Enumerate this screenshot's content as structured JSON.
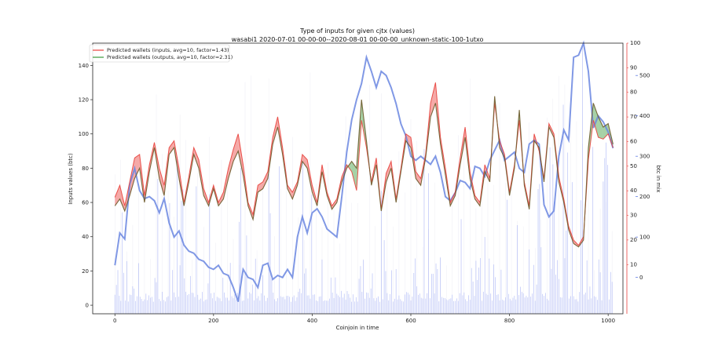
{
  "chart_data": {
    "type": "line",
    "title": "Type of inputs for given cjtx (values)",
    "subtitle": "wasabi1 2020-07-01 00-00-00--2020-08-01 00-00-00_unknown-static-100-1utxo",
    "xlabel": "Coinjoin in time",
    "ylabel": "Inputs values (btc)",
    "ylabel_right": "btc in mix",
    "xlim": [
      -45,
      1030
    ],
    "ylim": [
      -5,
      153
    ],
    "ylim_right_red": [
      -10,
      100
    ],
    "ylim_right_blue": [
      -90,
      580
    ],
    "x_ticks": [
      0,
      200,
      400,
      600,
      800,
      1000
    ],
    "y_ticks": [
      0,
      20,
      40,
      60,
      80,
      100,
      120,
      140
    ],
    "y_ticks_right_red": [
      10,
      20,
      30,
      40,
      50,
      60,
      70,
      80,
      90,
      100
    ],
    "y_ticks_right_blue": [
      0,
      100,
      200,
      300,
      400,
      500
    ],
    "legend_position": "top-left",
    "colors": {
      "inputs": "#e8413c",
      "outputs": "#3a9a3a",
      "mix": "#6a86e0",
      "red_axis": "#e8413c",
      "blue_axis": "#4a6ae0"
    },
    "series": [
      {
        "name": "Predicted wallets (inputs, avg=10, factor=1.43)",
        "axis": "left",
        "x": [
          0,
          10,
          20,
          30,
          40,
          50,
          60,
          70,
          80,
          90,
          100,
          110,
          120,
          130,
          140,
          150,
          160,
          170,
          180,
          190,
          200,
          210,
          220,
          230,
          240,
          250,
          260,
          270,
          280,
          290,
          300,
          310,
          320,
          330,
          340,
          350,
          360,
          370,
          380,
          390,
          400,
          410,
          420,
          430,
          440,
          450,
          460,
          470,
          480,
          490,
          500,
          510,
          520,
          530,
          540,
          550,
          560,
          570,
          580,
          590,
          600,
          610,
          620,
          630,
          640,
          650,
          660,
          670,
          680,
          690,
          700,
          710,
          720,
          730,
          740,
          750,
          760,
          770,
          780,
          790,
          800,
          810,
          820,
          830,
          840,
          850,
          860,
          870,
          880,
          890,
          900,
          910,
          920,
          930,
          940,
          950,
          960,
          970,
          980,
          990,
          1000,
          1010
        ],
        "values": [
          63,
          70,
          58,
          72,
          86,
          88,
          64,
          82,
          95,
          80,
          70,
          92,
          96,
          80,
          60,
          75,
          92,
          85,
          68,
          60,
          70,
          60,
          66,
          80,
          91,
          100,
          82,
          60,
          53,
          70,
          72,
          78,
          98,
          110,
          92,
          70,
          66,
          72,
          88,
          85,
          70,
          60,
          82,
          66,
          58,
          62,
          75,
          82,
          78,
          67,
          108,
          92,
          72,
          86,
          56,
          77,
          84,
          62,
          80,
          100,
          98,
          78,
          74,
          88,
          118,
          130,
          98,
          80,
          60,
          66,
          86,
          104,
          78,
          64,
          60,
          82,
          74,
          118,
          96,
          88,
          66,
          82,
          108,
          72,
          58,
          100,
          90,
          74,
          106,
          100,
          75,
          62,
          46,
          38,
          35,
          40,
          85,
          108,
          98,
          97,
          100,
          92
        ]
      },
      {
        "name": "Predicted wallets (outputs, avg=10, factor=2.31)",
        "axis": "left",
        "x": [
          0,
          10,
          20,
          30,
          40,
          50,
          60,
          70,
          80,
          90,
          100,
          110,
          120,
          130,
          140,
          150,
          160,
          170,
          180,
          190,
          200,
          210,
          220,
          230,
          240,
          250,
          260,
          270,
          280,
          290,
          300,
          310,
          320,
          330,
          340,
          350,
          360,
          370,
          380,
          390,
          400,
          410,
          420,
          430,
          440,
          450,
          460,
          470,
          480,
          490,
          500,
          510,
          520,
          530,
          540,
          550,
          560,
          570,
          580,
          590,
          600,
          610,
          620,
          630,
          640,
          650,
          660,
          670,
          680,
          690,
          700,
          710,
          720,
          730,
          740,
          750,
          760,
          770,
          780,
          790,
          800,
          810,
          820,
          830,
          840,
          850,
          860,
          870,
          880,
          890,
          900,
          910,
          920,
          930,
          940,
          950,
          960,
          970,
          980,
          990,
          1000,
          1010
        ],
        "values": [
          58,
          62,
          55,
          64,
          74,
          80,
          60,
          78,
          92,
          74,
          64,
          88,
          92,
          74,
          58,
          72,
          88,
          80,
          64,
          58,
          68,
          58,
          62,
          74,
          84,
          90,
          76,
          58,
          50,
          66,
          68,
          74,
          94,
          104,
          88,
          68,
          62,
          70,
          84,
          80,
          66,
          58,
          78,
          64,
          56,
          60,
          72,
          80,
          84,
          80,
          120,
          96,
          70,
          82,
          55,
          72,
          80,
          60,
          78,
          96,
          92,
          74,
          70,
          86,
          110,
          118,
          94,
          76,
          58,
          64,
          82,
          98,
          74,
          62,
          58,
          78,
          72,
          122,
          92,
          86,
          64,
          80,
          114,
          70,
          56,
          96,
          92,
          72,
          104,
          98,
          72,
          60,
          44,
          36,
          34,
          38,
          92,
          118,
          110,
          104,
          106,
          94
        ]
      },
      {
        "name": "btc in mix",
        "axis": "right-blue",
        "x": [
          0,
          10,
          20,
          30,
          40,
          50,
          60,
          70,
          80,
          90,
          100,
          110,
          120,
          130,
          140,
          150,
          160,
          170,
          180,
          190,
          200,
          210,
          220,
          230,
          240,
          250,
          260,
          270,
          280,
          290,
          300,
          310,
          320,
          330,
          340,
          350,
          360,
          370,
          380,
          390,
          400,
          410,
          420,
          430,
          440,
          450,
          460,
          470,
          480,
          490,
          500,
          510,
          520,
          530,
          540,
          550,
          560,
          570,
          580,
          590,
          600,
          610,
          620,
          630,
          640,
          650,
          660,
          670,
          680,
          690,
          700,
          710,
          720,
          730,
          740,
          750,
          760,
          770,
          780,
          790,
          800,
          810,
          820,
          830,
          840,
          850,
          860,
          870,
          880,
          890,
          900,
          910,
          920,
          930,
          940,
          950,
          960,
          970,
          980,
          990,
          1000,
          1010
        ],
        "values": [
          30,
          110,
          95,
          230,
          270,
          215,
          195,
          200,
          190,
          160,
          195,
          135,
          100,
          115,
          80,
          65,
          60,
          45,
          40,
          25,
          20,
          30,
          10,
          5,
          -25,
          -60,
          20,
          0,
          -5,
          -25,
          30,
          35,
          -5,
          5,
          0,
          20,
          0,
          100,
          150,
          110,
          160,
          170,
          150,
          120,
          110,
          100,
          200,
          310,
          390,
          440,
          480,
          545,
          510,
          470,
          510,
          500,
          470,
          430,
          380,
          350,
          300,
          290,
          300,
          290,
          280,
          300,
          260,
          200,
          190,
          210,
          240,
          235,
          220,
          275,
          270,
          250,
          290,
          315,
          340,
          290,
          300,
          310,
          270,
          260,
          330,
          340,
          330,
          180,
          150,
          165,
          300,
          365,
          340,
          545,
          550,
          580,
          510,
          370,
          400,
          385,
          360,
          320
        ]
      }
    ]
  }
}
